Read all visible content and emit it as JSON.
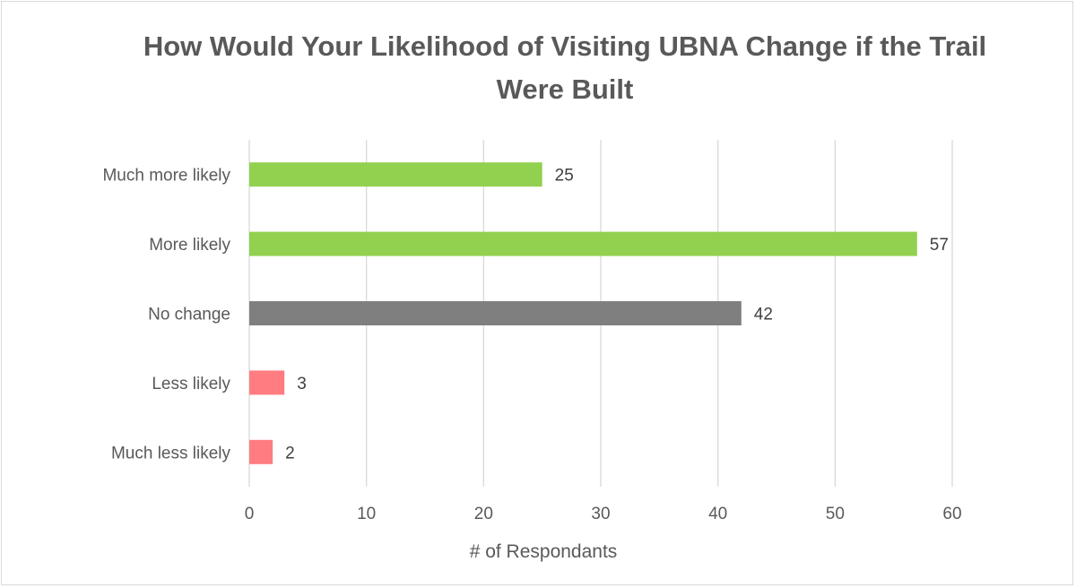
{
  "chart_data": {
    "type": "bar",
    "orientation": "horizontal",
    "title": "How Would Your Likelihood of Visiting UBNA Change if the Trail Were Built",
    "xlabel": "# of Respondants",
    "ylabel": "",
    "xlim": [
      0,
      60
    ],
    "ticks": [
      "0",
      "10",
      "20",
      "30",
      "40",
      "50",
      "60"
    ],
    "categories": [
      "Much more likely",
      "More likely",
      "No change",
      "Less likely",
      "Much less likely"
    ],
    "values": [
      25,
      57,
      42,
      3,
      2
    ],
    "colors": [
      "#92d050",
      "#92d050",
      "#7f7f7f",
      "#ff7c80",
      "#ff7c80"
    ],
    "grid": true,
    "legend": "none"
  }
}
